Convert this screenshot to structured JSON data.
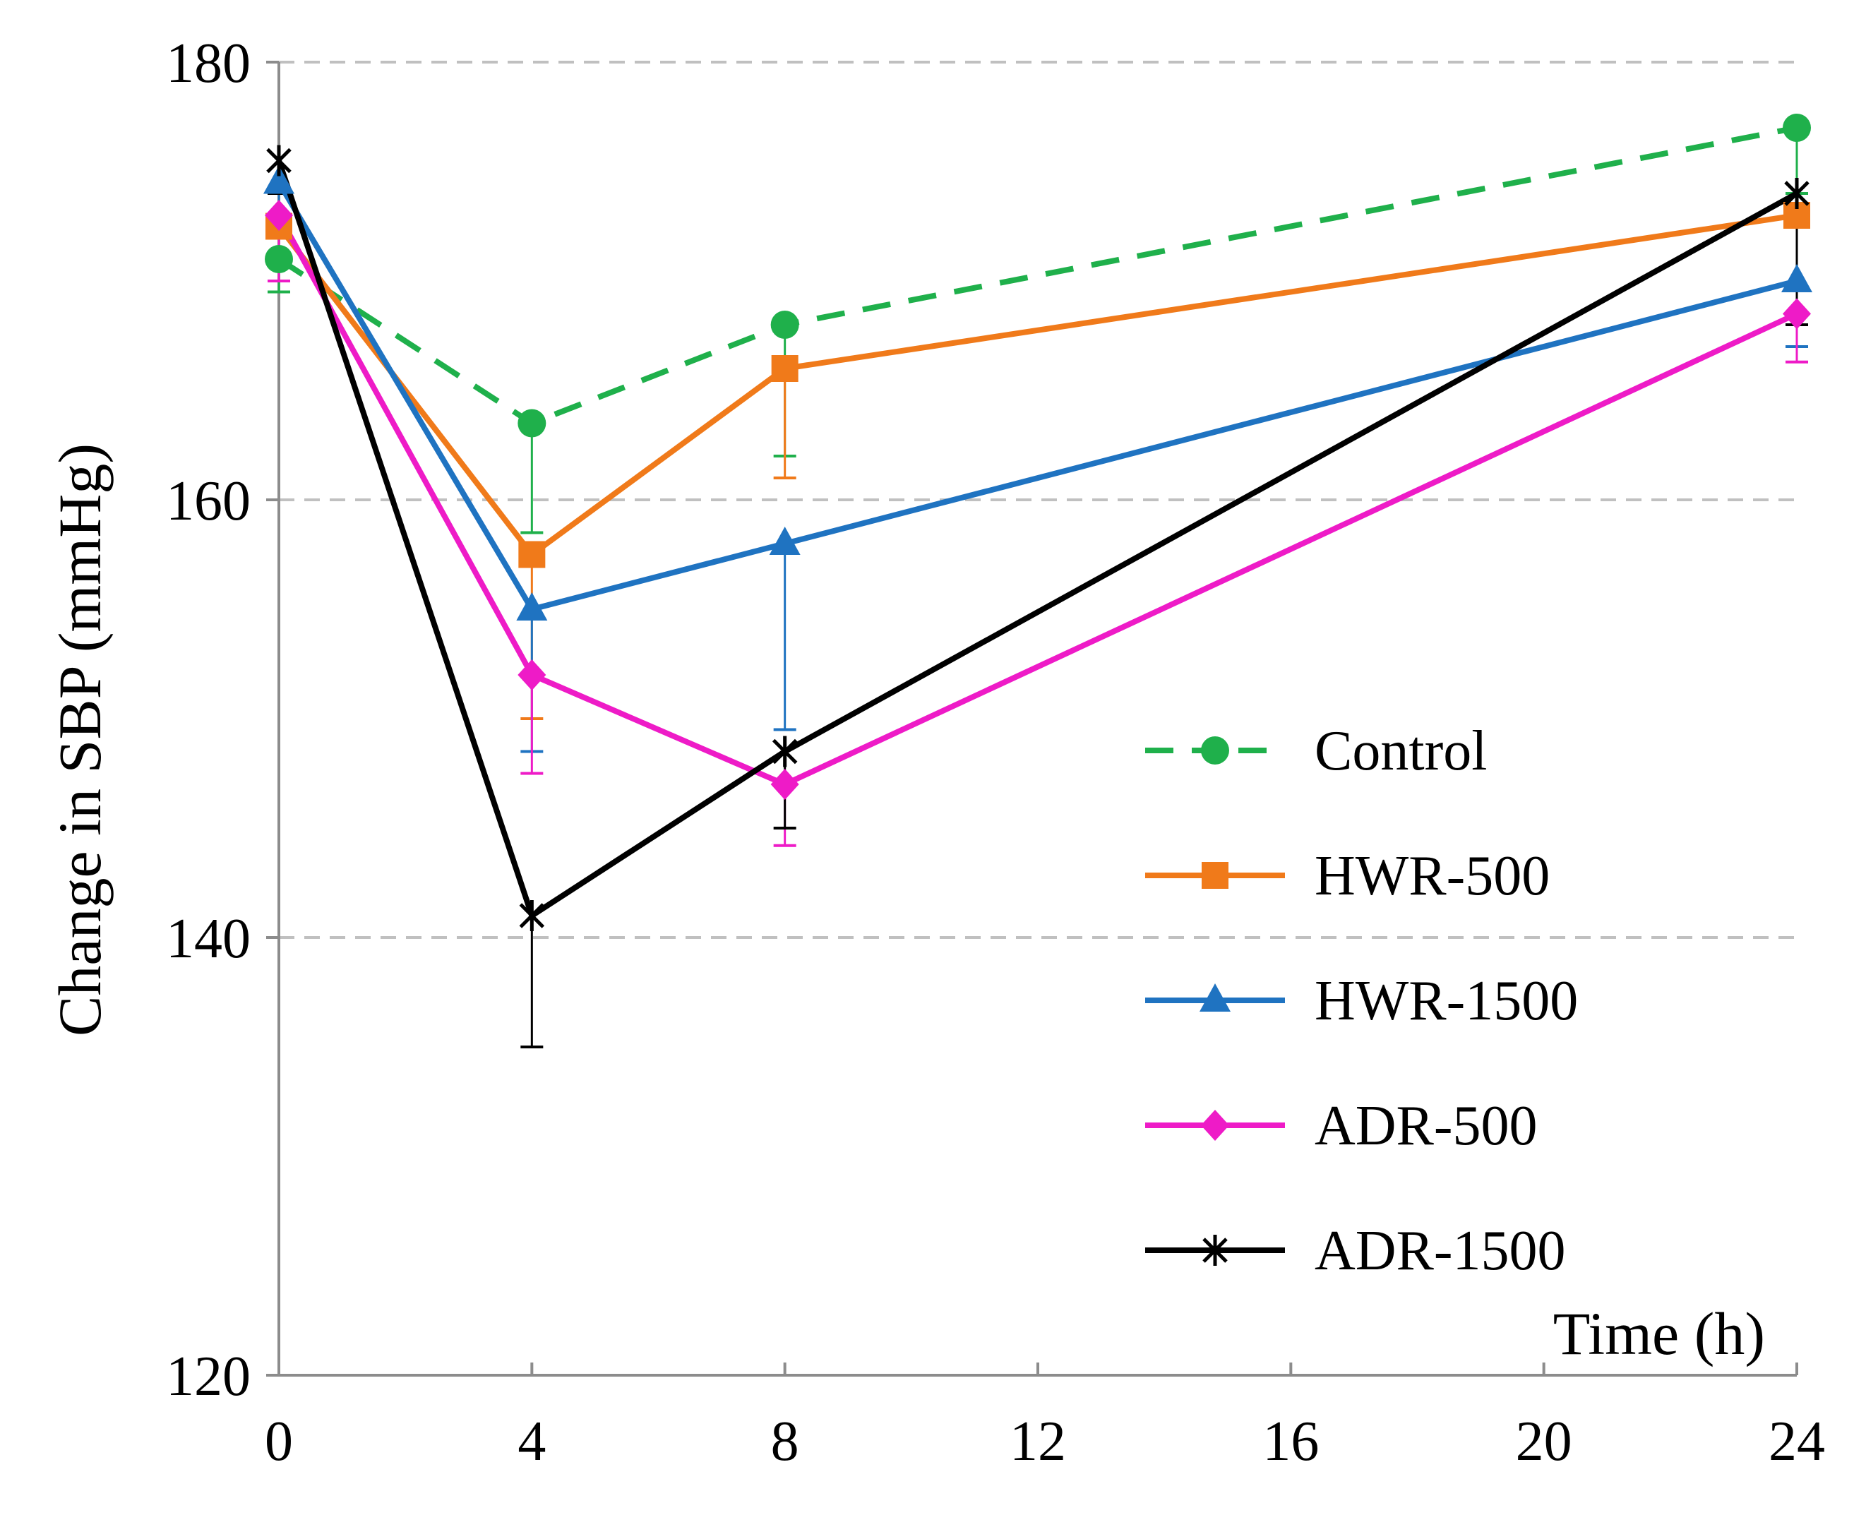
{
  "chart_data": {
    "type": "line",
    "xlabel": "Time (h)",
    "ylabel": "Change in SBP (mmHg)",
    "xlim": [
      0,
      24
    ],
    "ylim": [
      120,
      180
    ],
    "xticks": [
      0,
      4,
      8,
      12,
      16,
      20,
      24
    ],
    "yticks": [
      120,
      140,
      160,
      180
    ],
    "grid": "horizontal dashed",
    "legend_position": "right",
    "x": [
      0,
      4,
      8,
      24
    ],
    "series": [
      {
        "name": "Control",
        "color": "#1fb04b",
        "dash": "dashed",
        "marker": "circle",
        "values": [
          171,
          163.5,
          168,
          177
        ],
        "error": [
          1.5,
          5,
          6,
          3
        ]
      },
      {
        "name": "HWR-500",
        "color": "#f07a1a",
        "dash": "solid",
        "marker": "square",
        "values": [
          172.5,
          157.5,
          166,
          173
        ],
        "error": [
          1.5,
          7.5,
          5,
          4.5
        ]
      },
      {
        "name": "HWR-1500",
        "color": "#1f73c1",
        "dash": "solid",
        "marker": "triangle",
        "values": [
          174.5,
          155,
          158,
          170
        ],
        "error": [
          2,
          6.5,
          8.5,
          3
        ]
      },
      {
        "name": "ADR-500",
        "color": "#ee1bc7",
        "dash": "solid",
        "marker": "diamond",
        "values": [
          173,
          152,
          147,
          168.5
        ],
        "error": [
          3,
          4.5,
          2.8,
          2.2
        ]
      },
      {
        "name": "ADR-1500",
        "color": "#000000",
        "dash": "solid",
        "marker": "asterisk",
        "values": [
          175.5,
          141,
          148.5,
          174
        ],
        "error": [
          1.5,
          6,
          3.5,
          6
        ]
      }
    ]
  }
}
